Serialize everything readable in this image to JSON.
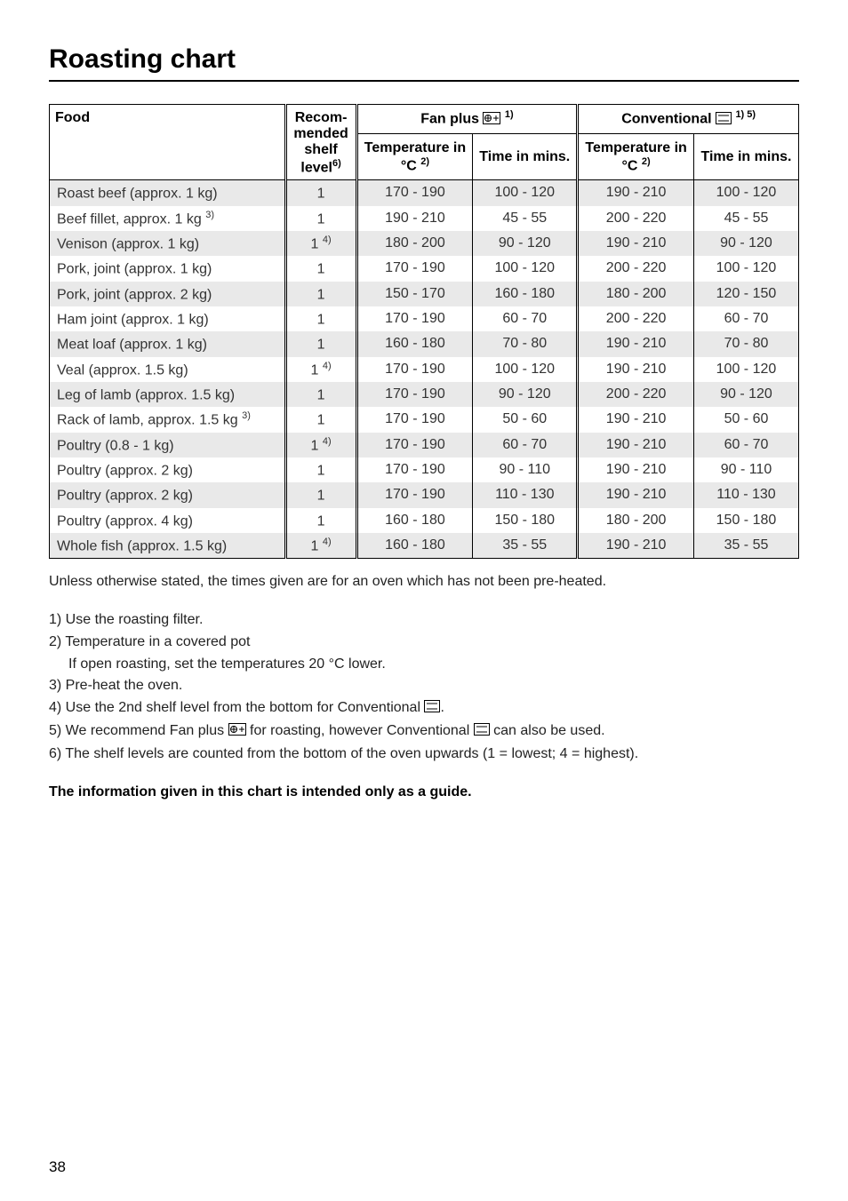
{
  "page": {
    "title": "Roasting chart",
    "number": "38"
  },
  "headers": {
    "food": "Food",
    "recom": "Recom-mended shelf level",
    "recom_sup": "6)",
    "fan_label": "Fan plus ",
    "fan_sup": "1)",
    "conv_label": "Conventional ",
    "conv_sup": "1) 5)",
    "temp_label": "Temperature in °C ",
    "temp_sup": "2)",
    "time_label": "Time in mins."
  },
  "rows": [
    {
      "food": "Roast beef (approx. 1 kg)",
      "food_sup": "",
      "shelf": "1",
      "shelf_sup": "",
      "f_temp": "170 - 190",
      "f_time": "100 - 120",
      "c_temp": "190 - 210",
      "c_time": "100 - 120"
    },
    {
      "food": "Beef fillet, approx. 1 kg ",
      "food_sup": "3)",
      "shelf": "1",
      "shelf_sup": "",
      "f_temp": "190 - 210",
      "f_time": "45 - 55",
      "c_temp": "200 - 220",
      "c_time": "45 - 55"
    },
    {
      "food": "Venison (approx. 1 kg)",
      "food_sup": "",
      "shelf": "1 ",
      "shelf_sup": "4)",
      "f_temp": "180 - 200",
      "f_time": "90 - 120",
      "c_temp": "190 - 210",
      "c_time": "90 - 120"
    },
    {
      "food": "Pork, joint (approx. 1 kg)",
      "food_sup": "",
      "shelf": "1",
      "shelf_sup": "",
      "f_temp": "170 - 190",
      "f_time": "100 - 120",
      "c_temp": "200 - 220",
      "c_time": "100 - 120"
    },
    {
      "food": "Pork, joint (approx. 2 kg)",
      "food_sup": "",
      "shelf": "1",
      "shelf_sup": "",
      "f_temp": "150 - 170",
      "f_time": "160  - 180",
      "c_temp": "180 - 200",
      "c_time": "120  - 150"
    },
    {
      "food": "Ham joint (approx. 1 kg)",
      "food_sup": "",
      "shelf": "1",
      "shelf_sup": "",
      "f_temp": "170 - 190",
      "f_time": "60 - 70",
      "c_temp": "200 - 220",
      "c_time": "60 - 70"
    },
    {
      "food": "Meat loaf (approx. 1 kg)",
      "food_sup": "",
      "shelf": "1",
      "shelf_sup": "",
      "f_temp": "160 - 180",
      "f_time": "70 - 80",
      "c_temp": "190 - 210",
      "c_time": "70 - 80"
    },
    {
      "food": "Veal (approx. 1.5 kg)",
      "food_sup": "",
      "shelf": "1 ",
      "shelf_sup": "4)",
      "f_temp": "170 - 190",
      "f_time": "100  - 120",
      "c_temp": "190 - 210",
      "c_time": "100  - 120"
    },
    {
      "food": "Leg of lamb (approx. 1.5 kg)",
      "food_sup": "",
      "shelf": "1",
      "shelf_sup": "",
      "f_temp": "170 - 190",
      "f_time": "90 - 120",
      "c_temp": "200 - 220",
      "c_time": "90 - 120"
    },
    {
      "food": "Rack of lamb, approx. 1.5 kg ",
      "food_sup": "3)",
      "shelf": "1",
      "shelf_sup": "",
      "f_temp": "170 - 190",
      "f_time": "50 - 60",
      "c_temp": "190 - 210",
      "c_time": "50 - 60"
    },
    {
      "food": "Poultry (0.8 - 1 kg)",
      "food_sup": "",
      "shelf": "1 ",
      "shelf_sup": "4)",
      "f_temp": "170 - 190",
      "f_time": "60 - 70",
      "c_temp": "190 - 210",
      "c_time": "60 - 70"
    },
    {
      "food": "Poultry (approx. 2 kg)",
      "food_sup": "",
      "shelf": "1",
      "shelf_sup": "",
      "f_temp": "170 - 190",
      "f_time": "90 - 110",
      "c_temp": "190 - 210",
      "c_time": "90 - 110"
    },
    {
      "food": "Poultry (approx. 2 kg)",
      "food_sup": "",
      "shelf": "1",
      "shelf_sup": "",
      "f_temp": "170 - 190",
      "f_time": "110 - 130",
      "c_temp": "190 - 210",
      "c_time": "110 - 130"
    },
    {
      "food": "Poultry (approx. 4 kg)",
      "food_sup": "",
      "shelf": "1",
      "shelf_sup": "",
      "f_temp": "160 - 180",
      "f_time": "150 - 180",
      "c_temp": "180 - 200",
      "c_time": "150 - 180"
    },
    {
      "food": "Whole fish (approx. 1.5 kg)",
      "food_sup": "",
      "shelf": "1 ",
      "shelf_sup": "4)",
      "f_temp": "160 - 180",
      "f_time": "35 - 55",
      "c_temp": "190 - 210",
      "c_time": "35 - 55"
    }
  ],
  "notes": {
    "n0": "Unless otherwise stated, the times given are for an oven which has not been pre-heated.",
    "n1": "1) Use the roasting filter.",
    "n2": "2) Temperature in a covered pot",
    "n2b": "If open roasting, set the temperatures 20 °C lower.",
    "n3": "3) Pre-heat the oven.",
    "n4a": "4) Use the 2nd shelf level from the bottom for Conventional ",
    "n4b": ".",
    "n5a": "5) We recommend Fan plus ",
    "n5b": " for roasting, however Conventional ",
    "n5c": " can also be used.",
    "n6": "6) The shelf levels are counted from the bottom of the oven upwards (1 = lowest; 4 = highest).",
    "bold": "The information given in this chart is intended only as a guide."
  },
  "style": {
    "stripe": "#e9e9e9",
    "body_text": "#333"
  }
}
